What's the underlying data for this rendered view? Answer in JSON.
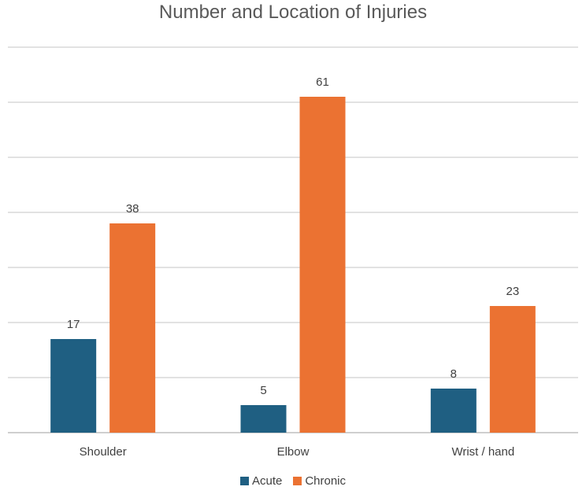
{
  "chart_data": {
    "type": "bar",
    "title": "Number and Location of Injuries",
    "categories": [
      "Shoulder",
      "Elbow",
      "Wrist / hand"
    ],
    "series": [
      {
        "name": "Acute",
        "values": [
          17,
          5,
          8
        ],
        "color": "#1f5f82"
      },
      {
        "name": "Chronic",
        "values": [
          38,
          61,
          23
        ],
        "color": "#eb7232"
      }
    ],
    "ylim": [
      0,
      70
    ],
    "yticks_shown": false,
    "grid": true,
    "legend": "bottom",
    "data_labels": true
  }
}
